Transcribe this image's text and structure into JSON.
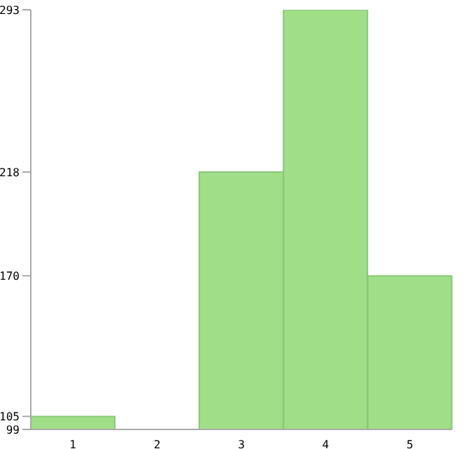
{
  "chart_data": {
    "type": "bar",
    "categories": [
      "1",
      "2",
      "3",
      "4",
      "5"
    ],
    "values": [
      105,
      99,
      218,
      293,
      170
    ],
    "color": "#a0de88",
    "ylim": [
      99,
      293
    ],
    "yticks": [
      99,
      105,
      170,
      218,
      293
    ],
    "grid": false
  }
}
